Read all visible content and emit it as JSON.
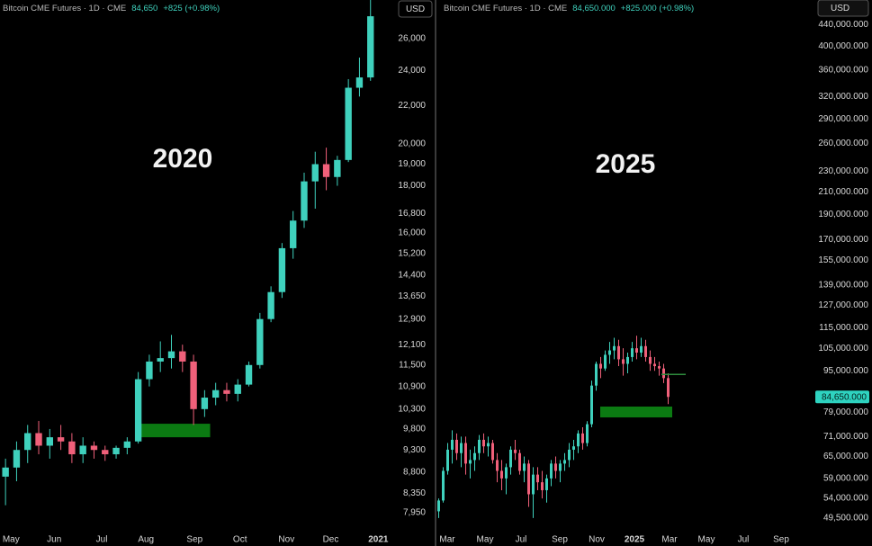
{
  "chart_data": [
    {
      "type": "candlestick",
      "title": "Bitcoin CME Futures · 1D · CME",
      "last_price": {
        "value": 84650,
        "label": "84,650"
      },
      "change": "+825 (+0.98%)",
      "currency": "USD",
      "annotation": "2020",
      "log_scale": true,
      "up_color": "#3fd1bd",
      "down_color": "#f0607a",
      "open": [
        8700,
        8900,
        9300,
        9700,
        9400,
        9600,
        9500,
        9200,
        9400,
        9300,
        9200,
        9350,
        9500,
        11100,
        11600,
        11700,
        11900,
        11600,
        10300,
        10600,
        10800,
        10700,
        10950,
        11500,
        12900,
        13800,
        15400,
        16500,
        18200,
        19000,
        18400,
        19200,
        23000,
        23600
      ],
      "high": [
        9100,
        9500,
        9900,
        10000,
        9800,
        9900,
        9700,
        9600,
        9500,
        9400,
        9400,
        9600,
        11300,
        11800,
        12200,
        12400,
        12100,
        11800,
        10800,
        11000,
        11000,
        11100,
        11600,
        13100,
        14000,
        15600,
        16900,
        18600,
        19600,
        19800,
        19400,
        23500,
        24800,
        29000
      ],
      "low": [
        8100,
        8600,
        9000,
        9200,
        9100,
        9300,
        9000,
        9000,
        9100,
        9050,
        9100,
        9200,
        9450,
        10900,
        11300,
        11400,
        11300,
        9900,
        10100,
        10400,
        10500,
        10500,
        10900,
        11400,
        12800,
        13600,
        15000,
        16200,
        17000,
        17800,
        18000,
        19100,
        22500,
        23400
      ],
      "close": [
        8900,
        9300,
        9700,
        9400,
        9600,
        9500,
        9200,
        9400,
        9300,
        9200,
        9350,
        9500,
        11100,
        11600,
        11700,
        11900,
        11600,
        10300,
        10600,
        10800,
        10700,
        10950,
        11500,
        12900,
        13800,
        15400,
        16500,
        18200,
        19000,
        18400,
        19200,
        23000,
        23600,
        27500
      ],
      "xlim": [
        0,
        35.8
      ],
      "xticks": [
        {
          "value": 1,
          "label": "May"
        },
        {
          "value": 4.9,
          "label": "Jun"
        },
        {
          "value": 9.2,
          "label": "Jul"
        },
        {
          "value": 13.2,
          "label": "Aug"
        },
        {
          "value": 17.6,
          "label": "Sep"
        },
        {
          "value": 21.7,
          "label": "Oct"
        },
        {
          "value": 25.9,
          "label": "Nov"
        },
        {
          "value": 29.9,
          "label": "Dec"
        },
        {
          "value": 34.2,
          "label": "2021"
        }
      ],
      "ylim": [
        7600,
        28640
      ],
      "yticks": [
        {
          "value": 7950,
          "label": "7,950"
        },
        {
          "value": 8350,
          "label": "8,350"
        },
        {
          "value": 8800,
          "label": "8,800"
        },
        {
          "value": 9300,
          "label": "9,300"
        },
        {
          "value": 9800,
          "label": "9,800"
        },
        {
          "value": 10300,
          "label": "10,300"
        },
        {
          "value": 10900,
          "label": "10,900"
        },
        {
          "value": 11500,
          "label": "11,500"
        },
        {
          "value": 12100,
          "label": "12,100"
        },
        {
          "value": 12900,
          "label": "12,900"
        },
        {
          "value": 13650,
          "label": "13,650"
        },
        {
          "value": 14400,
          "label": "14,400"
        },
        {
          "value": 15200,
          "label": "15,200"
        },
        {
          "value": 16000,
          "label": "16,000"
        },
        {
          "value": 16800,
          "label": "16,800"
        },
        {
          "value": 18000,
          "label": "18,000"
        },
        {
          "value": 19000,
          "label": "19,000"
        },
        {
          "value": 20000,
          "label": "20,000"
        },
        {
          "value": 22000,
          "label": "22,000"
        },
        {
          "value": 24000,
          "label": "24,000"
        },
        {
          "value": 26000,
          "label": "26,000"
        }
      ],
      "zone": {
        "x": [
          12.3,
          19.0
        ],
        "y": [
          9600,
          9930
        ],
        "color": "#0b7a12"
      }
    },
    {
      "type": "candlestick",
      "title": "Bitcoin CME Futures · 1D · CME",
      "last_price": {
        "value": 84650,
        "label": "84,650.000"
      },
      "change": "+825.000 (+0.98%)",
      "currency": "USD",
      "annotation": "2025",
      "log_scale": true,
      "up_color": "#3fd1bd",
      "down_color": "#f0607a",
      "badge_color": "#2ed3c0",
      "open": [
        51000,
        53500,
        61000,
        67000,
        70000,
        66000,
        69000,
        63000,
        64000,
        66000,
        70000,
        68000,
        69000,
        64000,
        61000,
        59000,
        62000,
        67000,
        66000,
        61000,
        63000,
        55000,
        60000,
        58000,
        56000,
        59000,
        63000,
        61000,
        63000,
        64000,
        67000,
        68000,
        72000,
        69000,
        75000,
        89000,
        98000,
        96000,
        102000,
        104000,
        106000,
        100000,
        98000,
        101000,
        105000,
        103000,
        106000,
        101000,
        98000,
        97000,
        96000,
        92000
      ],
      "high": [
        54000,
        62000,
        69000,
        73000,
        72000,
        71000,
        71000,
        67000,
        68000,
        71500,
        72000,
        71000,
        70000,
        66000,
        64000,
        63000,
        68000,
        70000,
        67000,
        65000,
        64000,
        62000,
        62000,
        61000,
        60000,
        64000,
        65000,
        64000,
        66000,
        69000,
        70000,
        73000,
        74000,
        76000,
        91000,
        99000,
        101000,
        104000,
        108000,
        110000,
        109000,
        105000,
        103000,
        108000,
        111000,
        110000,
        109000,
        104000,
        101000,
        99000,
        98000,
        94000
      ],
      "low": [
        49500,
        53000,
        60000,
        63000,
        64000,
        62000,
        60000,
        59000,
        61000,
        64000,
        66000,
        65000,
        63000,
        58000,
        56000,
        55000,
        60000,
        64000,
        60000,
        58000,
        52000,
        49500,
        56000,
        54000,
        53000,
        57000,
        59000,
        58000,
        61000,
        62000,
        64000,
        66000,
        67000,
        68000,
        74000,
        87000,
        92000,
        95000,
        98000,
        100000,
        97000,
        93000,
        94000,
        99000,
        100000,
        101000,
        99000,
        95000,
        95000,
        93000,
        90000,
        82000
      ],
      "close": [
        53500,
        61000,
        67000,
        70000,
        66000,
        69000,
        63000,
        64000,
        66000,
        70000,
        68000,
        69000,
        64000,
        61000,
        59000,
        62000,
        67000,
        66000,
        61000,
        63000,
        55000,
        60000,
        58000,
        56000,
        59000,
        63000,
        61000,
        63000,
        64000,
        67000,
        68000,
        72000,
        69000,
        75000,
        89000,
        98000,
        96000,
        102000,
        104000,
        106000,
        100000,
        98000,
        101000,
        105000,
        103000,
        106000,
        101000,
        98000,
        97000,
        96000,
        92000,
        84650
      ],
      "xlim": [
        0,
        84
      ],
      "xticks": [
        {
          "value": 2.4,
          "label": "Mar"
        },
        {
          "value": 10.8,
          "label": "May"
        },
        {
          "value": 18.8,
          "label": "Jul"
        },
        {
          "value": 27.4,
          "label": "Sep"
        },
        {
          "value": 35.6,
          "label": "Nov"
        },
        {
          "value": 44,
          "label": "2025"
        },
        {
          "value": 51.8,
          "label": "Mar"
        },
        {
          "value": 60,
          "label": "May"
        },
        {
          "value": 68.2,
          "label": "Jul"
        },
        {
          "value": 76.6,
          "label": "Sep"
        }
      ],
      "ylim": [
        46800,
        491000
      ],
      "yticks": [
        {
          "value": 49500,
          "label": "49,500.000"
        },
        {
          "value": 54000,
          "label": "54,000.000"
        },
        {
          "value": 59000,
          "label": "59,000.000"
        },
        {
          "value": 65000,
          "label": "65,000.000"
        },
        {
          "value": 71000,
          "label": "71,000.000"
        },
        {
          "value": 79000,
          "label": "79,000.000"
        },
        {
          "value": 95000,
          "label": "95,000.000"
        },
        {
          "value": 105000,
          "label": "105,000.000"
        },
        {
          "value": 115000,
          "label": "115,000.000"
        },
        {
          "value": 127000,
          "label": "127,000.000"
        },
        {
          "value": 139000,
          "label": "139,000.000"
        },
        {
          "value": 155000,
          "label": "155,000.000"
        },
        {
          "value": 170000,
          "label": "170,000.000"
        },
        {
          "value": 190000,
          "label": "190,000.000"
        },
        {
          "value": 210000,
          "label": "210,000.000"
        },
        {
          "value": 230000,
          "label": "230,000.000"
        },
        {
          "value": 260000,
          "label": "260,000.000"
        },
        {
          "value": 290000,
          "label": "290,000.000"
        },
        {
          "value": 320000,
          "label": "320,000.000"
        },
        {
          "value": 360000,
          "label": "360,000.000"
        },
        {
          "value": 400000,
          "label": "400,000.000"
        },
        {
          "value": 440000,
          "label": "440,000.000"
        }
      ],
      "zone": {
        "x": [
          36.4,
          52.4
        ],
        "y": [
          77300,
          81100
        ],
        "color": "#0b7a12"
      },
      "price_line": {
        "value": 93500,
        "x": [
          50,
          55.4
        ],
        "color": "#2e8b3d"
      }
    }
  ]
}
